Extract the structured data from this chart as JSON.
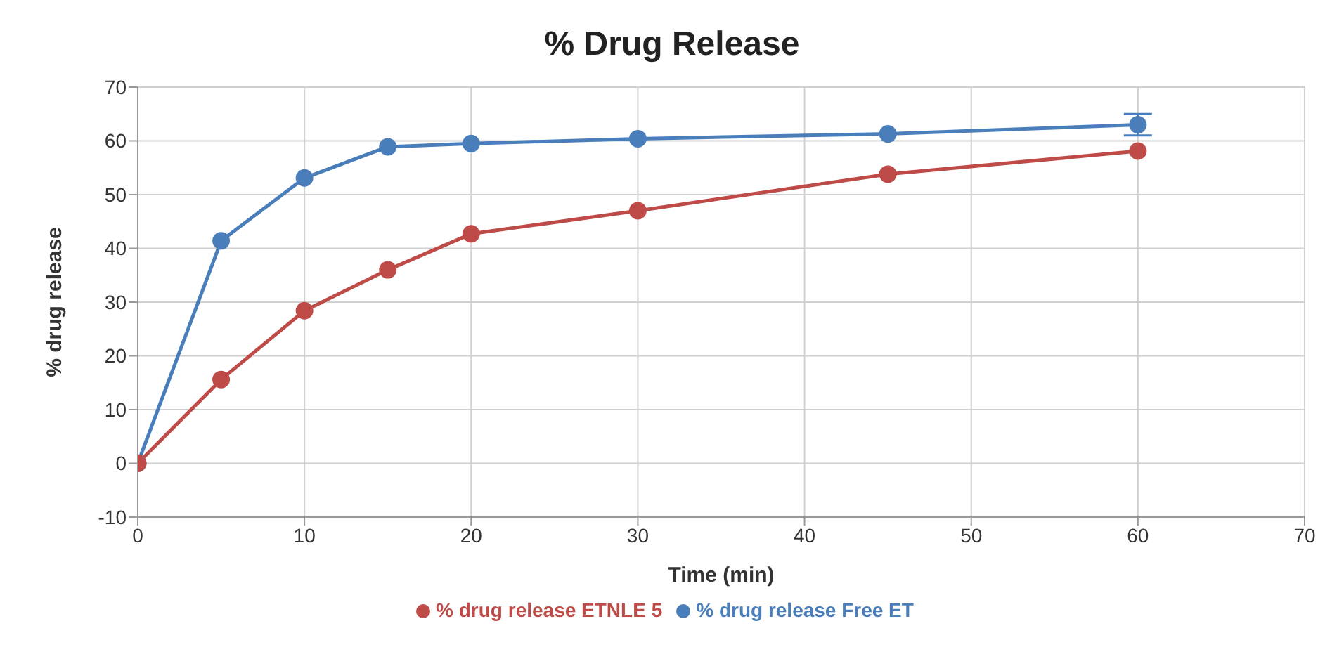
{
  "chart_data": {
    "type": "line",
    "title": "% Drug Release",
    "xlabel": "Time (min)",
    "ylabel": "% drug release",
    "x": [
      0,
      5,
      10,
      15,
      20,
      30,
      45,
      60
    ],
    "series": [
      {
        "name": "% drug release  Free ET",
        "color": "#4a7ebb",
        "values": [
          0,
          41.4,
          53.1,
          58.9,
          59.5,
          60.4,
          61.3,
          63
        ],
        "errors": [
          null,
          null,
          null,
          null,
          null,
          null,
          null,
          2
        ]
      },
      {
        "name": "% drug release  ETNLE 5",
        "color": "#be4b48",
        "values": [
          0,
          15.6,
          28.4,
          36,
          42.7,
          47,
          53.8,
          58.1
        ]
      }
    ],
    "xlim": [
      0,
      70
    ],
    "xticks": [
      0,
      10,
      20,
      30,
      40,
      50,
      60,
      70
    ],
    "ylim": [
      -10,
      70
    ],
    "yticks": [
      -10,
      0,
      10,
      20,
      30,
      40,
      50,
      60,
      70
    ],
    "grid": true,
    "legend": "bottom",
    "marker": "circle",
    "line_style": "solid"
  }
}
